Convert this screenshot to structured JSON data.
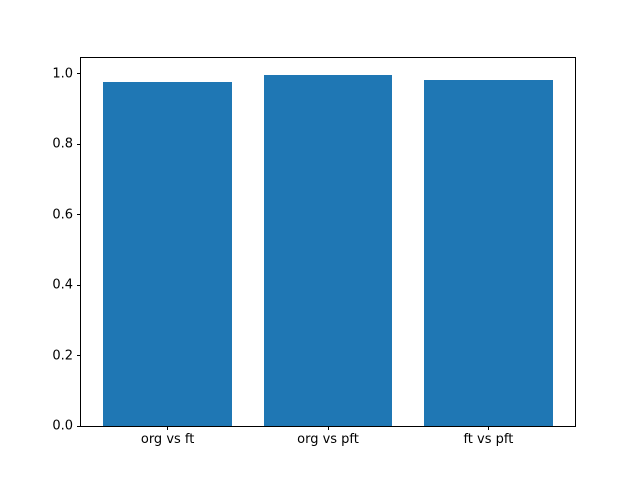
{
  "chart_data": {
    "type": "bar",
    "title": "",
    "xlabel": "",
    "ylabel": "",
    "categories": [
      "org vs ft",
      "org vs pft",
      "ft vs pft"
    ],
    "values": [
      0.975,
      0.995,
      0.981
    ],
    "bar_color": "#1f77b4",
    "bar_width_fraction": 0.8,
    "xlim": [
      -0.54,
      2.54
    ],
    "ylim": [
      0,
      1.044
    ],
    "yticks": [
      0.0,
      0.2,
      0.4,
      0.6,
      0.8,
      1.0
    ],
    "ytick_labels": [
      "0.0",
      "0.2",
      "0.4",
      "0.6",
      "0.8",
      "1.0"
    ],
    "grid": false,
    "legend": null,
    "axis_color": "#000000",
    "background": "#ffffff",
    "text_color": "#000000"
  }
}
